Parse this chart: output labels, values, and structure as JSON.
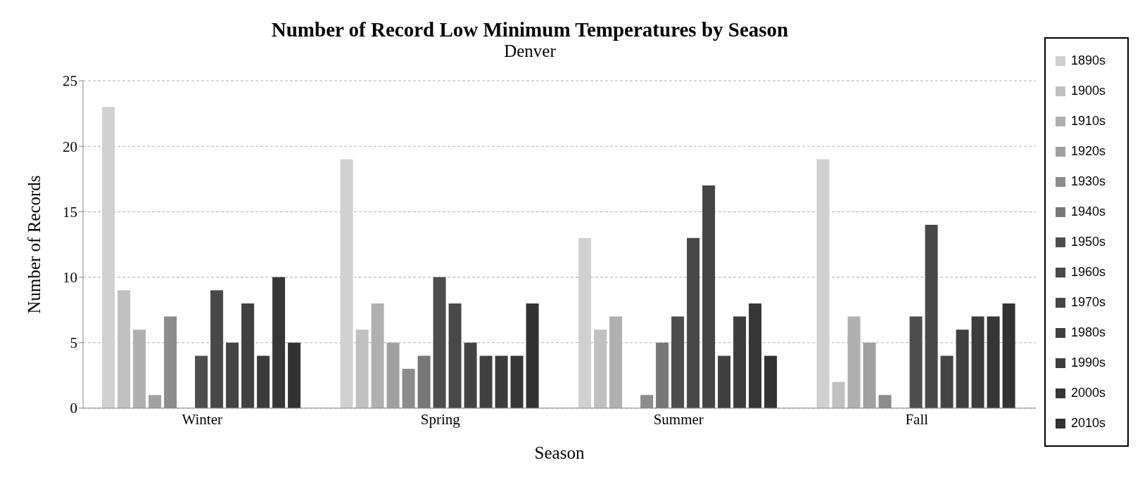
{
  "chart_data": {
    "type": "bar",
    "title": "Number of Record Low Minimum Temperatures by Season",
    "subtitle": "Denver",
    "xlabel": "Season",
    "ylabel": "Number of Records",
    "categories": [
      "Winter",
      "Spring",
      "Summer",
      "Fall"
    ],
    "series": [
      {
        "name": "1890s",
        "color": "#d0d0d0",
        "values": [
          23,
          19,
          13,
          19
        ]
      },
      {
        "name": "1900s",
        "color": "#c0c0c0",
        "values": [
          9,
          6,
          6,
          2
        ]
      },
      {
        "name": "1910s",
        "color": "#b0b0b0",
        "values": [
          6,
          8,
          7,
          7
        ]
      },
      {
        "name": "1920s",
        "color": "#a0a0a0",
        "values": [
          1,
          5,
          0,
          5
        ]
      },
      {
        "name": "1930s",
        "color": "#8c8c8c",
        "values": [
          7,
          3,
          1,
          1
        ]
      },
      {
        "name": "1940s",
        "color": "#777777",
        "values": [
          0,
          4,
          5,
          0
        ]
      },
      {
        "name": "1950s",
        "color": "#4d4d4d",
        "values": [
          4,
          10,
          7,
          7
        ]
      },
      {
        "name": "1960s",
        "color": "#484848",
        "values": [
          9,
          8,
          13,
          14
        ]
      },
      {
        "name": "1970s",
        "color": "#444444",
        "values": [
          5,
          5,
          17,
          4
        ]
      },
      {
        "name": "1980s",
        "color": "#404040",
        "values": [
          8,
          4,
          4,
          6
        ]
      },
      {
        "name": "1990s",
        "color": "#3c3c3c",
        "values": [
          4,
          4,
          7,
          7
        ]
      },
      {
        "name": "2000s",
        "color": "#363636",
        "values": [
          10,
          4,
          8,
          7
        ]
      },
      {
        "name": "2010s",
        "color": "#323232",
        "values": [
          5,
          8,
          4,
          8
        ]
      }
    ],
    "ylim": [
      0,
      25
    ],
    "yticks": [
      0,
      5,
      10,
      15,
      20,
      25
    ],
    "grid": "y",
    "legend": "right"
  }
}
